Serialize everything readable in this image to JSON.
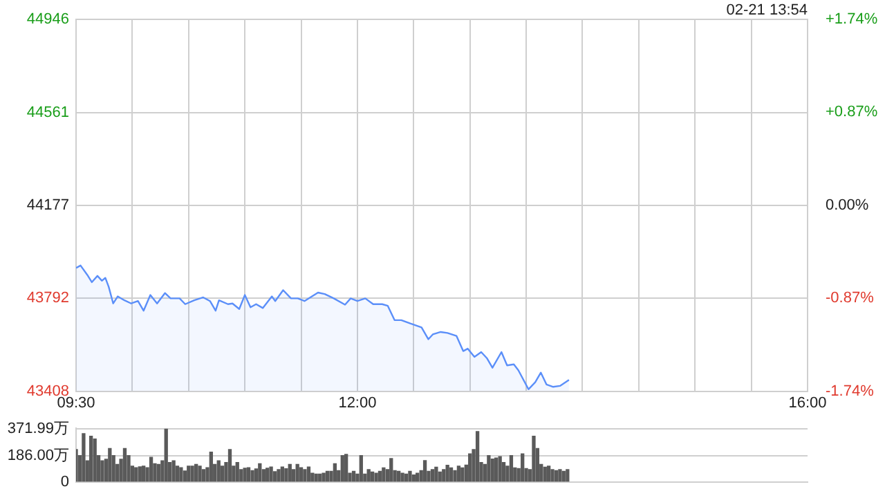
{
  "chart_data": [
    {
      "type": "area",
      "annotations": [
        "02-21 13:54"
      ],
      "grid": true,
      "xlim": [
        9.5,
        16
      ],
      "xticks": [
        {
          "value": 9.5,
          "label": "09:30"
        },
        {
          "value": 10,
          "label": null
        },
        {
          "value": 10.5,
          "label": null
        },
        {
          "value": 11,
          "label": null
        },
        {
          "value": 11.5,
          "label": null
        },
        {
          "value": 12,
          "label": "12:00"
        },
        {
          "value": 12.5,
          "label": null
        },
        {
          "value": 13,
          "label": null
        },
        {
          "value": 13.5,
          "label": null
        },
        {
          "value": 14,
          "label": null
        },
        {
          "value": 14.5,
          "label": null
        },
        {
          "value": 15,
          "label": null
        },
        {
          "value": 15.5,
          "label": null
        },
        {
          "value": 16,
          "label": "16:00"
        }
      ],
      "ylim": [
        43408,
        44946
      ],
      "yticks": [
        43408,
        43792,
        44177,
        44561,
        44946
      ],
      "y2lim": [
        -1.74,
        1.74
      ],
      "y2ticks": [
        {
          "value": -1.74,
          "label": "-1.74%"
        },
        {
          "value": -0.87,
          "label": "-0.87%"
        },
        {
          "value": 0,
          "label": "0.00%"
        },
        {
          "value": 0.87,
          "label": "+0.87%"
        },
        {
          "value": 1.74,
          "label": "+1.74%"
        }
      ],
      "series": [
        {
          "color": "#5b8ff9",
          "x": [
            9.5,
            9.54,
            9.6,
            9.64,
            9.69,
            9.73,
            9.76,
            9.79,
            9.83,
            9.87,
            9.93,
            9.99,
            10.05,
            10.1,
            10.16,
            10.22,
            10.29,
            10.34,
            10.42,
            10.47,
            10.55,
            10.63,
            10.69,
            10.74,
            10.77,
            10.85,
            10.89,
            10.95,
            11,
            11.05,
            11.1,
            11.16,
            11.24,
            11.27,
            11.34,
            11.41,
            11.47,
            11.53,
            11.65,
            11.71,
            11.79,
            11.89,
            11.94,
            12,
            12.07,
            12.14,
            12.22,
            12.27,
            12.33,
            12.39,
            12.47,
            12.57,
            12.63,
            12.67,
            12.74,
            12.8,
            12.88,
            12.94,
            12.98,
            13.04,
            13.1,
            13.15,
            13.2,
            13.28,
            13.33,
            13.39,
            13.43,
            13.52,
            13.58,
            13.63,
            13.68,
            13.74,
            13.8,
            13.88
          ],
          "values": [
            43918,
            43928,
            43889,
            43859,
            43885,
            43865,
            43877,
            43840,
            43771,
            43800,
            43784,
            43771,
            43781,
            43741,
            43806,
            43771,
            43814,
            43792,
            43792,
            43768,
            43784,
            43796,
            43781,
            43741,
            43784,
            43768,
            43771,
            43748,
            43806,
            43755,
            43768,
            43752,
            43800,
            43781,
            43826,
            43792,
            43792,
            43781,
            43816,
            43810,
            43792,
            43766,
            43792,
            43781,
            43792,
            43768,
            43768,
            43761,
            43702,
            43702,
            43688,
            43672,
            43623,
            43643,
            43653,
            43649,
            43637,
            43574,
            43584,
            43550,
            43570,
            43545,
            43505,
            43570,
            43515,
            43519,
            43495,
            43416,
            43445,
            43485,
            43436,
            43426,
            43430,
            43455
          ]
        }
      ]
    },
    {
      "type": "bar",
      "grid": "y",
      "tick_labels": "y",
      "color": "#5a5a5a",
      "xlim": [
        9.5,
        16
      ],
      "ylim": [
        0,
        378
      ],
      "yticks": [
        0,
        {
          "value": 186,
          "label": "186.00万"
        },
        {
          "value": 371.99,
          "label": "371.99万"
        }
      ],
      "x": [
        9.5,
        9.533,
        9.567,
        9.6,
        9.633,
        9.667,
        9.7,
        9.733,
        9.767,
        9.8,
        9.833,
        9.867,
        9.9,
        9.933,
        9.967,
        10,
        10.033,
        10.067,
        10.1,
        10.133,
        10.167,
        10.2,
        10.233,
        10.267,
        10.3,
        10.333,
        10.367,
        10.4,
        10.433,
        10.467,
        10.5,
        10.533,
        10.567,
        10.6,
        10.633,
        10.667,
        10.7,
        10.733,
        10.767,
        10.8,
        10.833,
        10.867,
        10.9,
        10.933,
        10.967,
        11,
        11.033,
        11.067,
        11.1,
        11.133,
        11.167,
        11.2,
        11.233,
        11.267,
        11.3,
        11.333,
        11.367,
        11.4,
        11.433,
        11.467,
        11.5,
        11.533,
        11.567,
        11.6,
        11.633,
        11.667,
        11.7,
        11.733,
        11.767,
        11.8,
        11.833,
        11.867,
        11.9,
        11.933,
        11.967,
        12,
        12.033,
        12.067,
        12.1,
        12.133,
        12.167,
        12.2,
        12.233,
        12.267,
        12.3,
        12.333,
        12.367,
        12.4,
        12.433,
        12.467,
        12.5,
        12.533,
        12.567,
        12.6,
        12.633,
        12.667,
        12.7,
        12.733,
        12.767,
        12.8,
        12.833,
        12.867,
        12.9,
        12.933,
        12.967,
        13,
        13.033,
        13.067,
        13.1,
        13.133,
        13.167,
        13.2,
        13.233,
        13.267,
        13.3,
        13.333,
        13.367,
        13.4,
        13.433,
        13.467,
        13.5,
        13.533,
        13.567,
        13.6,
        13.633,
        13.667,
        13.7,
        13.733,
        13.767,
        13.8,
        13.833,
        13.867
      ],
      "values": [
        228,
        186,
        340,
        149,
        322,
        303,
        186,
        149,
        160,
        236,
        186,
        124,
        160,
        236,
        186,
        112,
        100,
        107,
        112,
        100,
        174,
        129,
        124,
        149,
        372,
        137,
        149,
        112,
        100,
        77,
        112,
        112,
        124,
        112,
        87,
        100,
        210,
        124,
        149,
        112,
        137,
        228,
        112,
        137,
        87,
        97,
        100,
        80,
        92,
        129,
        87,
        97,
        105,
        72,
        87,
        105,
        93,
        124,
        87,
        124,
        100,
        87,
        105,
        62,
        55,
        55,
        62,
        75,
        75,
        129,
        80,
        186,
        194,
        62,
        75,
        55,
        186,
        55,
        87,
        70,
        62,
        75,
        99,
        87,
        165,
        80,
        75,
        62,
        55,
        75,
        50,
        62,
        80,
        150,
        75,
        87,
        104,
        70,
        87,
        117,
        99,
        80,
        112,
        99,
        119,
        198,
        228,
        355,
        137,
        124,
        186,
        161,
        169,
        179,
        137,
        112,
        186,
        99,
        94,
        198,
        94,
        87,
        322,
        236,
        124,
        104,
        112,
        87,
        80,
        87,
        75,
        87
      ]
    }
  ]
}
